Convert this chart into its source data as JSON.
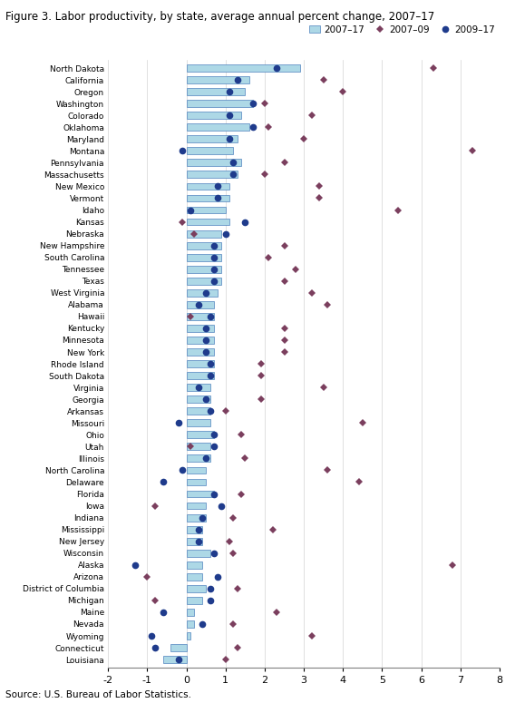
{
  "title": "Figure 3. Labor productivity, by state, average annual percent change, 2007–17",
  "source": "Source: U.S. Bureau of Labor Statistics.",
  "states": [
    "North Dakota",
    "California",
    "Oregon",
    "Washington",
    "Colorado",
    "Oklahoma",
    "Maryland",
    "Montana",
    "Pennsylvania",
    "Massachusetts",
    "New Mexico",
    "Vermont",
    "Idaho",
    "Kansas",
    "Nebraska",
    "New Hampshire",
    "South Carolina",
    "Tennessee",
    "Texas",
    "West Virginia",
    "Alabama",
    "Hawaii",
    "Kentucky",
    "Minnesota",
    "New York",
    "Rhode Island",
    "South Dakota",
    "Virginia",
    "Georgia",
    "Arkansas",
    "Missouri",
    "Ohio",
    "Utah",
    "Illinois",
    "North Carolina",
    "Delaware",
    "Florida",
    "Iowa",
    "Indiana",
    "Mississippi",
    "New Jersey",
    "Wisconsin",
    "Alaska",
    "Arizona",
    "District of Columbia",
    "Michigan",
    "Maine",
    "Nevada",
    "Wyoming",
    "Connecticut",
    "Louisiana"
  ],
  "bar_2007_17": [
    2.9,
    1.6,
    1.5,
    1.7,
    1.4,
    1.6,
    1.3,
    1.2,
    1.4,
    1.3,
    1.1,
    1.1,
    1.0,
    1.1,
    0.9,
    0.9,
    0.9,
    0.9,
    0.9,
    0.8,
    0.7,
    0.7,
    0.7,
    0.7,
    0.7,
    0.7,
    0.7,
    0.6,
    0.6,
    0.6,
    0.6,
    0.7,
    0.6,
    0.6,
    0.5,
    0.5,
    0.7,
    0.5,
    0.5,
    0.4,
    0.4,
    0.6,
    0.4,
    0.4,
    0.5,
    0.4,
    0.2,
    0.2,
    0.1,
    -0.4,
    -0.6
  ],
  "dot_2007_09": [
    6.3,
    3.5,
    4.0,
    2.0,
    3.2,
    2.1,
    3.0,
    7.3,
    2.5,
    2.0,
    3.4,
    3.4,
    5.4,
    -0.1,
    0.2,
    2.5,
    2.1,
    2.8,
    2.5,
    3.2,
    3.6,
    0.1,
    2.5,
    2.5,
    2.5,
    1.9,
    1.9,
    3.5,
    1.9,
    1.0,
    4.5,
    1.4,
    0.1,
    1.5,
    3.6,
    4.4,
    1.4,
    -0.8,
    1.2,
    2.2,
    1.1,
    1.2,
    6.8,
    -1.0,
    1.3,
    -0.8,
    2.3,
    1.2,
    3.2,
    1.3,
    1.0
  ],
  "dot_2009_17": [
    2.3,
    1.3,
    1.1,
    1.7,
    1.1,
    1.7,
    1.1,
    -0.1,
    1.2,
    1.2,
    0.8,
    0.8,
    0.1,
    1.5,
    1.0,
    0.7,
    0.7,
    0.7,
    0.7,
    0.5,
    0.3,
    0.6,
    0.5,
    0.5,
    0.5,
    0.6,
    0.6,
    0.3,
    0.5,
    0.6,
    -0.2,
    0.7,
    0.7,
    0.5,
    -0.1,
    -0.6,
    0.7,
    0.9,
    0.4,
    0.3,
    0.3,
    0.7,
    -1.3,
    0.8,
    0.6,
    0.6,
    -0.6,
    0.4,
    -0.9,
    -0.8,
    -0.2
  ],
  "bar_color": "#add8e6",
  "bar_edge_color": "#4f81bd",
  "dot_2007_09_color": "#7b3f5e",
  "dot_2009_17_color": "#1f3b8c",
  "xlim": [
    -2,
    8
  ],
  "xticks": [
    -2,
    -1,
    0,
    1,
    2,
    3,
    4,
    5,
    6,
    7,
    8
  ]
}
